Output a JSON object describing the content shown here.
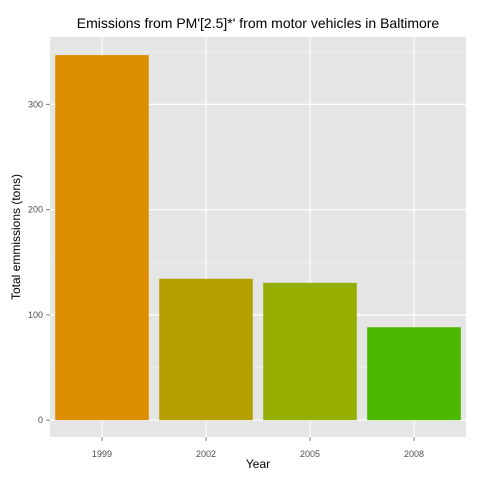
{
  "chart_data": {
    "type": "bar",
    "title": "Emissions from PM'[2.5]*' from motor vehicles in Baltimore",
    "xlabel": "Year",
    "ylabel": "Total emmissions (tons)",
    "categories": [
      "1999",
      "2002",
      "2005",
      "2008"
    ],
    "values": [
      346.82,
      134.31,
      130.43,
      88.28
    ],
    "colors": [
      "#dd8e00",
      "#b69f00",
      "#95ae00",
      "#4cb800"
    ],
    "ylim": [
      -16,
      364
    ],
    "yticks": [
      0,
      100,
      200,
      300
    ],
    "ytick_labels": [
      "0",
      "100",
      "200",
      "300"
    ],
    "grid": true,
    "legend": "none"
  },
  "style": {
    "panel_background": "#e5e5e5",
    "grid_major": "#ffffff",
    "grid_minor": "#f2f2f2"
  }
}
